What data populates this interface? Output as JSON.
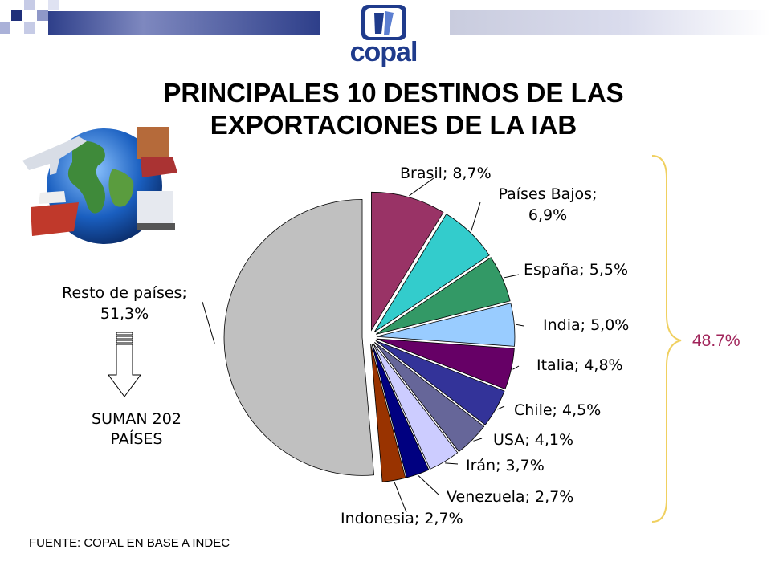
{
  "logo": {
    "text": "copal"
  },
  "title": {
    "line1": "PRINCIPALES 10 DESTINOS DE LAS",
    "line2": "EXPORTACIONES DE LA IAB"
  },
  "chart_data": {
    "type": "pie",
    "slices": [
      {
        "name": "Brasil",
        "value": 8.7,
        "label": "Brasil; 8,7%",
        "color": "#993366"
      },
      {
        "name": "Países Bajos",
        "value": 6.9,
        "label_lines": [
          "Países Bajos;",
          "6,9%"
        ],
        "color": "#33cccc"
      },
      {
        "name": "España",
        "value": 5.5,
        "label": "España; 5,5%",
        "color": "#339966"
      },
      {
        "name": "India",
        "value": 5.0,
        "label": "India; 5,0%",
        "color": "#99ccff"
      },
      {
        "name": "Italia",
        "value": 4.8,
        "label": "Italia; 4,8%",
        "color": "#660066"
      },
      {
        "name": "Chile",
        "value": 4.5,
        "label": "Chile; 4,5%",
        "color": "#333399"
      },
      {
        "name": "USA",
        "value": 4.1,
        "label": "USA; 4,1%",
        "color": "#666699"
      },
      {
        "name": "Irán",
        "value": 3.7,
        "label": "Irán; 3,7%",
        "color": "#ccccff"
      },
      {
        "name": "Venezuela",
        "value": 2.7,
        "label": "Venezuela; 2,7%",
        "color": "#000080"
      },
      {
        "name": "Indonesia",
        "value": 2.7,
        "label": "Indonesia; 2,7%",
        "color": "#993300"
      },
      {
        "name": "Resto de países",
        "value": 51.3,
        "label_lines": [
          "Resto de países;",
          "51,3%"
        ],
        "color": "#c0c0c0"
      }
    ]
  },
  "annotations": {
    "sum_line1": "SUMAN 202",
    "sum_line2": "PAÍSES",
    "total_top10": "48.7%",
    "brace_color": "#f0d060",
    "total_color": "#a0245a"
  },
  "source": "FUENTE: COPAL EN BASE A INDEC"
}
